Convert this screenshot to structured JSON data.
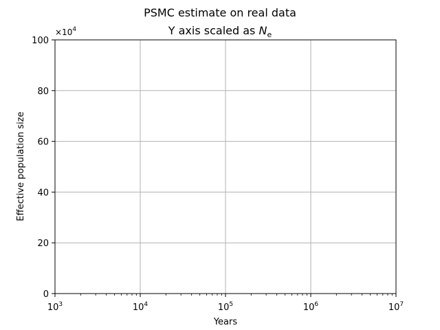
{
  "chart_data": {
    "type": "line",
    "title": "PSMC estimate on real data",
    "subtitle": "Y axis scaled as N_e",
    "xlabel": "Years",
    "ylabel": "Effective population size",
    "x_scale": "log",
    "xlim": [
      1000,
      10000000
    ],
    "ylim": [
      0,
      100
    ],
    "y_multiplier": "×10^4",
    "x_tick_labels": [
      {
        "value": 1000,
        "base": "10",
        "exp": "3"
      },
      {
        "value": 10000,
        "base": "10",
        "exp": "4"
      },
      {
        "value": 100000,
        "base": "10",
        "exp": "5"
      },
      {
        "value": 1000000,
        "base": "10",
        "exp": "6"
      },
      {
        "value": 10000000,
        "base": "10",
        "exp": "7"
      }
    ],
    "y_ticks": [
      0,
      20,
      40,
      60,
      80,
      100
    ],
    "grid": true,
    "series": []
  }
}
